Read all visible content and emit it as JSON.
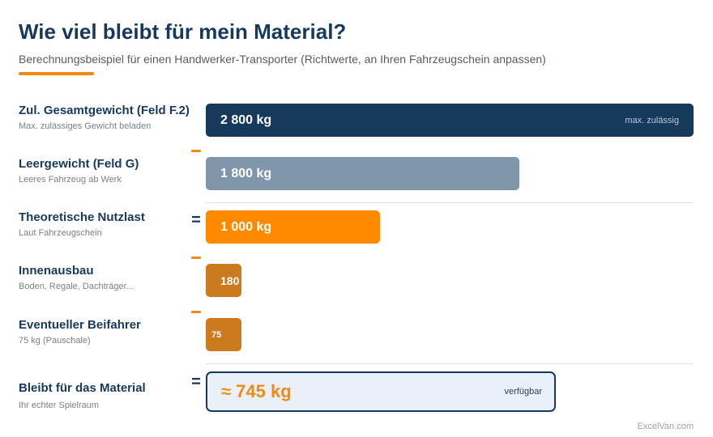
{
  "title": "Wie viel bleibt für mein Material?",
  "subtitle": "Berechnungsbeispiel für einen Handwerker-Transporter (Richtwerte, an Ihren Fahrzeugschein anpassen)",
  "footer": "ExcelVan.com",
  "colors": {
    "title": "#17395c",
    "accent": "#f5890d",
    "gesamt": "#17395c",
    "leer": "#7f96ab",
    "nutzlast": "#ff8a00",
    "abzug": "#cc7a1e",
    "result_bg": "#eaf0f7"
  },
  "chart_data": {
    "type": "bar",
    "orientation": "horizontal",
    "title": "Wie viel bleibt für mein Material?",
    "subtitle": "Berechnungsbeispiel für einen Handwerker-Transporter (Richtwerte, an Ihren Fahrzeugschein anpassen)",
    "unit": "kg",
    "xlim": [
      0,
      2800
    ],
    "rows": [
      {
        "label": "Zul. Gesamtgewicht (Feld F.2)",
        "desc": "Max. zulässiges Gewicht beladen",
        "value": 2800,
        "display": "2 800 kg",
        "operator": "",
        "tag": "max. zulässig",
        "color": "#17395c"
      },
      {
        "label": "Leergewicht (Feld G)",
        "desc": "Leeres Fahrzeug ab Werk",
        "value": 1800,
        "display": "1 800 kg",
        "operator": "−",
        "tag": "",
        "color": "#7f96ab"
      },
      {
        "label": "Theoretische Nutzlast",
        "desc": "Laut Fahrzeugschein",
        "value": 1000,
        "display": "1 000 kg",
        "operator": "=",
        "tag": "",
        "color": "#ff8a00"
      },
      {
        "label": "Innenausbau",
        "desc": "Boden, Regale, Dachträger...",
        "value": 180,
        "display": "180 kg",
        "operator": "−",
        "tag": "",
        "color": "#cc7a1e"
      },
      {
        "label": "Eventueller Beifahrer",
        "desc": "75 kg (Pauschale)",
        "value": 75,
        "display": "75",
        "operator": "−",
        "tag": "",
        "color": "#cc7a1e"
      }
    ],
    "result": {
      "label": "Bleibt für das Material",
      "desc": "Ihr echter Spielraum",
      "value": 745,
      "display": "≈ 745 kg",
      "operator": "=",
      "tag": "verfügbar"
    }
  }
}
